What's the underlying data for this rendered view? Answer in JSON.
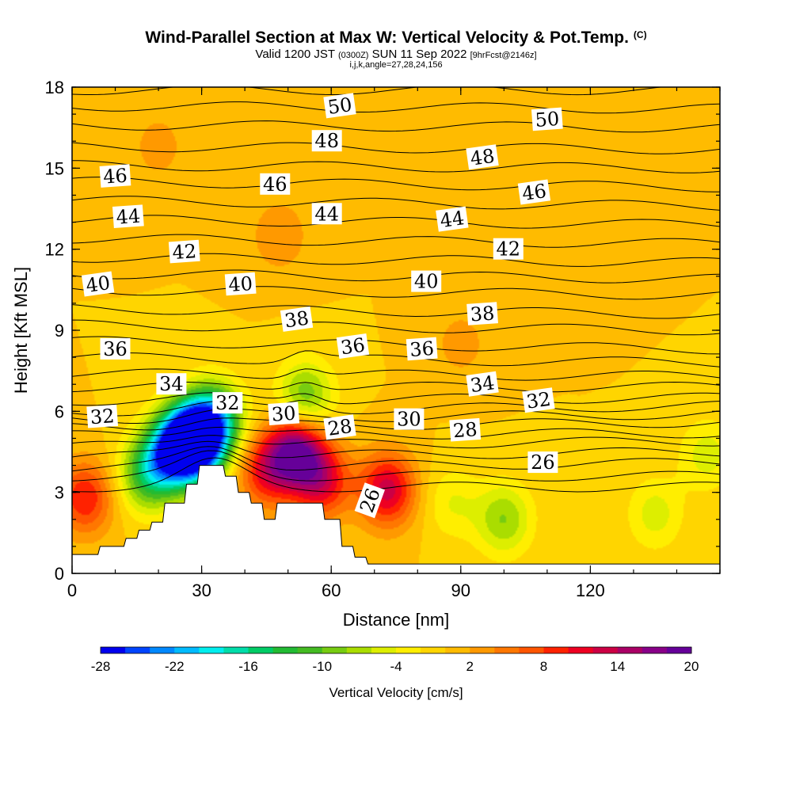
{
  "header": {
    "title": "Wind-Parallel Section at Max W: Vertical Velocity & Pot.Temp.",
    "copyright": "(C)",
    "valid_main": "Valid 1200 JST",
    "valid_zulu": "(0300Z)",
    "valid_date": "SUN 11 Sep 2022",
    "forecast": "[9hrFcst@2146z]",
    "indices": "i,j,k,angle=27,28,24,156"
  },
  "chart_data": {
    "type": "heatmap",
    "xlabel": "Distance [nm]",
    "ylabel": "Height [Kft MSL]",
    "xlim": [
      0,
      150
    ],
    "ylim": [
      0,
      18
    ],
    "x_ticks": [
      "0",
      "30",
      "60",
      "90",
      "120"
    ],
    "y_ticks": [
      "0",
      "3",
      "6",
      "9",
      "12",
      "15",
      "18"
    ],
    "colorbar": {
      "label": "Vertical Velocity [cm/s]",
      "tick_labels": [
        "-28",
        "-22",
        "-16",
        "-10",
        "-4",
        "2",
        "8",
        "14",
        "20"
      ],
      "colors": [
        "#0000ee",
        "#0044ff",
        "#0088ff",
        "#00bbff",
        "#00eeee",
        "#00ddaa",
        "#00cc66",
        "#22bb33",
        "#44bb22",
        "#77cc11",
        "#aadd00",
        "#ddee00",
        "#ffee00",
        "#ffd500",
        "#ffbb00",
        "#ff9900",
        "#ff7700",
        "#ff5500",
        "#ff2200",
        "#ee0022",
        "#cc0044",
        "#aa0066",
        "#880088",
        "#660099"
      ]
    },
    "background_velocity": 0,
    "velocity_features": [
      {
        "x": 17,
        "y": 3.6,
        "value": -10
      },
      {
        "x": 22,
        "y": 4.3,
        "value": -13
      },
      {
        "x": 26,
        "y": 4.8,
        "value": -18
      },
      {
        "x": 29,
        "y": 4.9,
        "value": -25
      },
      {
        "x": 33,
        "y": 5.7,
        "value": -16
      },
      {
        "x": 54,
        "y": 6.5,
        "value": -10
      },
      {
        "x": 3,
        "y": 2.8,
        "value": 10
      },
      {
        "x": 45,
        "y": 3.8,
        "value": 10
      },
      {
        "x": 52,
        "y": 4.5,
        "value": 18
      },
      {
        "x": 58,
        "y": 3.4,
        "value": 11
      },
      {
        "x": 73,
        "y": 3.1,
        "value": 13
      },
      {
        "x": 88,
        "y": 2.6,
        "value": -4
      },
      {
        "x": 100,
        "y": 2.0,
        "value": -8
      },
      {
        "x": 135,
        "y": 2.2,
        "value": -5
      },
      {
        "x": 147,
        "y": 4.4,
        "value": -5
      },
      {
        "x": 20,
        "y": 15.8,
        "value": 3
      },
      {
        "x": 48,
        "y": 12.5,
        "value": 4
      },
      {
        "x": 90,
        "y": 8.5,
        "value": 3
      },
      {
        "x": 122,
        "y": 12.0,
        "value": 2
      }
    ],
    "terrain": [
      {
        "x": 0,
        "h": 0.7
      },
      {
        "x": 6,
        "h": 0.7
      },
      {
        "x": 6.5,
        "h": 1.0
      },
      {
        "x": 12,
        "h": 1.0
      },
      {
        "x": 12.5,
        "h": 1.3
      },
      {
        "x": 15,
        "h": 1.3
      },
      {
        "x": 15.5,
        "h": 1.6
      },
      {
        "x": 18,
        "h": 1.6
      },
      {
        "x": 18.5,
        "h": 1.9
      },
      {
        "x": 21,
        "h": 1.9
      },
      {
        "x": 21.5,
        "h": 2.6
      },
      {
        "x": 26,
        "h": 2.6
      },
      {
        "x": 26.5,
        "h": 3.3
      },
      {
        "x": 29,
        "h": 3.3
      },
      {
        "x": 29.5,
        "h": 4.0
      },
      {
        "x": 35,
        "h": 4.0
      },
      {
        "x": 35.5,
        "h": 3.6
      },
      {
        "x": 38,
        "h": 3.6
      },
      {
        "x": 38.5,
        "h": 3.0
      },
      {
        "x": 41,
        "h": 3.0
      },
      {
        "x": 41.5,
        "h": 2.6
      },
      {
        "x": 44,
        "h": 2.6
      },
      {
        "x": 44.5,
        "h": 2.0
      },
      {
        "x": 47,
        "h": 2.0
      },
      {
        "x": 47.5,
        "h": 2.6
      },
      {
        "x": 58,
        "h": 2.6
      },
      {
        "x": 58.5,
        "h": 2.0
      },
      {
        "x": 62,
        "h": 2.0
      },
      {
        "x": 62.5,
        "h": 1.0
      },
      {
        "x": 65,
        "h": 1.0
      },
      {
        "x": 65.5,
        "h": 0.6
      },
      {
        "x": 68,
        "h": 0.6
      },
      {
        "x": 68.5,
        "h": 0.35
      },
      {
        "x": 150,
        "h": 0.35
      }
    ],
    "theta_levels": [
      {
        "value": 24,
        "base": 3.2,
        "top": 3.2
      },
      {
        "value": 25,
        "base": 3.6,
        "top": 3.6
      },
      {
        "value": 26,
        "base": 3.9,
        "top": 4.1
      },
      {
        "value": 27,
        "base": 4.3,
        "top": 4.5
      },
      {
        "value": 28,
        "base": 4.7,
        "top": 4.9
      },
      {
        "value": 29,
        "base": 5.1,
        "top": 5.2
      },
      {
        "value": 30,
        "base": 5.4,
        "top": 5.6
      },
      {
        "value": 31,
        "base": 5.7,
        "top": 5.9
      },
      {
        "value": 32,
        "base": 6.0,
        "top": 6.2
      },
      {
        "value": 33,
        "base": 6.4,
        "top": 6.5
      },
      {
        "value": 34,
        "base": 6.9,
        "top": 6.9
      },
      {
        "value": 35,
        "base": 7.4,
        "top": 7.3
      },
      {
        "value": 36,
        "base": 8.0,
        "top": 7.8
      },
      {
        "value": 37,
        "base": 8.6,
        "top": 8.3
      },
      {
        "value": 38,
        "base": 9.2,
        "top": 9.0
      },
      {
        "value": 39,
        "base": 9.8,
        "top": 9.6
      },
      {
        "value": 40,
        "base": 10.5,
        "top": 10.3
      },
      {
        "value": 41,
        "base": 11.1,
        "top": 10.9
      },
      {
        "value": 42,
        "base": 11.7,
        "top": 11.5
      },
      {
        "value": 43,
        "base": 12.4,
        "top": 12.2
      },
      {
        "value": 44,
        "base": 13.1,
        "top": 12.9
      },
      {
        "value": 45,
        "base": 13.8,
        "top": 13.6
      },
      {
        "value": 46,
        "base": 14.5,
        "top": 14.3
      },
      {
        "value": 47,
        "base": 15.1,
        "top": 15.0
      },
      {
        "value": 48,
        "base": 15.8,
        "top": 15.7
      },
      {
        "value": 49,
        "base": 16.6,
        "top": 16.5
      },
      {
        "value": 50,
        "base": 17.3,
        "top": 17.2
      },
      {
        "value": 51,
        "base": 17.9,
        "top": 17.9
      }
    ],
    "contour_labels": [
      {
        "text": "50",
        "x": 62,
        "y": 17.3
      },
      {
        "text": "50",
        "x": 110,
        "y": 16.8
      },
      {
        "text": "48",
        "x": 59,
        "y": 16.0
      },
      {
        "text": "48",
        "x": 95,
        "y": 15.4
      },
      {
        "text": "46",
        "x": 10,
        "y": 14.7
      },
      {
        "text": "46",
        "x": 47,
        "y": 14.4
      },
      {
        "text": "46",
        "x": 107,
        "y": 14.1
      },
      {
        "text": "44",
        "x": 13,
        "y": 13.2
      },
      {
        "text": "44",
        "x": 59,
        "y": 13.3
      },
      {
        "text": "44",
        "x": 88,
        "y": 13.1
      },
      {
        "text": "42",
        "x": 26,
        "y": 11.9
      },
      {
        "text": "42",
        "x": 101,
        "y": 12.0
      },
      {
        "text": "40",
        "x": 6,
        "y": 10.7
      },
      {
        "text": "40",
        "x": 39,
        "y": 10.7
      },
      {
        "text": "40",
        "x": 82,
        "y": 10.8
      },
      {
        "text": "38",
        "x": 52,
        "y": 9.4
      },
      {
        "text": "38",
        "x": 95,
        "y": 9.6
      },
      {
        "text": "36",
        "x": 10,
        "y": 8.3
      },
      {
        "text": "36",
        "x": 65,
        "y": 8.4
      },
      {
        "text": "36",
        "x": 81,
        "y": 8.3
      },
      {
        "text": "34",
        "x": 23,
        "y": 7.0
      },
      {
        "text": "34",
        "x": 95,
        "y": 7.0
      },
      {
        "text": "32",
        "x": 7,
        "y": 5.8
      },
      {
        "text": "32",
        "x": 36,
        "y": 6.3
      },
      {
        "text": "32",
        "x": 108,
        "y": 6.4
      },
      {
        "text": "30",
        "x": 49,
        "y": 5.9
      },
      {
        "text": "30",
        "x": 78,
        "y": 5.7
      },
      {
        "text": "28",
        "x": 62,
        "y": 5.4
      },
      {
        "text": "28",
        "x": 91,
        "y": 5.3
      },
      {
        "text": "26",
        "x": 109,
        "y": 4.1
      },
      {
        "text": "26",
        "x": 69,
        "y": 2.7
      }
    ]
  }
}
